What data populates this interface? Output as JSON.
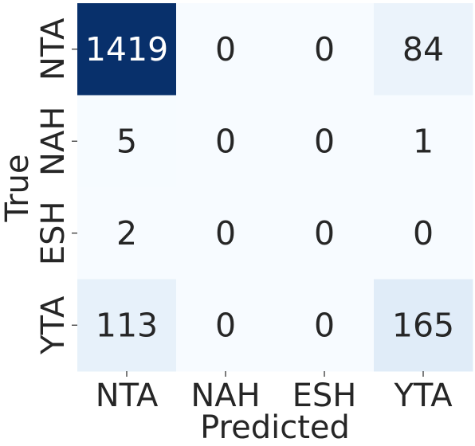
{
  "chart_data": {
    "type": "heatmap",
    "title": "",
    "xlabel": "Predicted",
    "ylabel": "True",
    "x_categories": [
      "NTA",
      "NAH",
      "ESH",
      "YTA"
    ],
    "y_categories": [
      "NTA",
      "NAH",
      "ESH",
      "YTA"
    ],
    "values": [
      [
        1419,
        0,
        0,
        84
      ],
      [
        5,
        0,
        0,
        1
      ],
      [
        2,
        0,
        0,
        0
      ],
      [
        113,
        0,
        0,
        165
      ]
    ],
    "colormap": "Blues",
    "colorbar": false,
    "colors": {
      "low": "#f7fbff",
      "high": "#08306b",
      "text_dark": "#262626",
      "text_light": "#ffffff"
    }
  }
}
